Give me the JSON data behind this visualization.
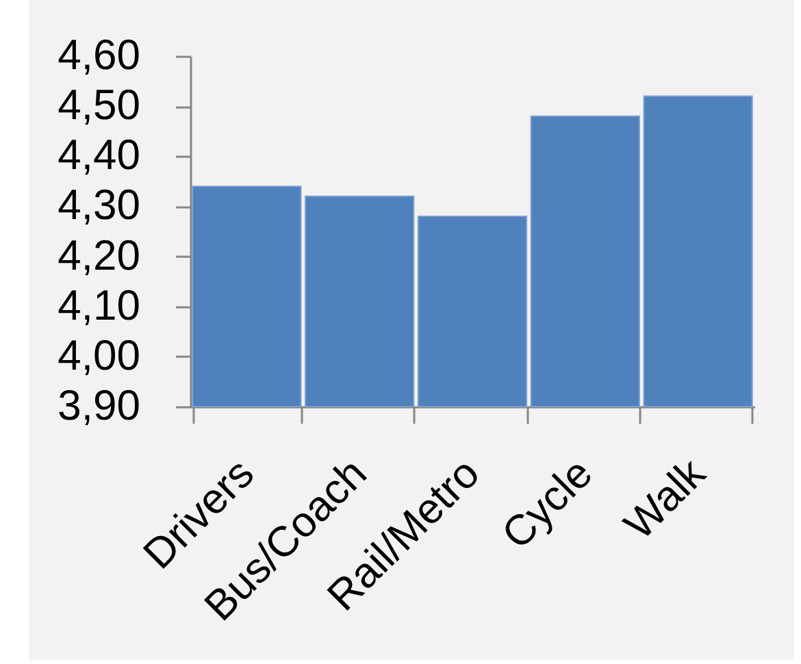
{
  "chart_data": {
    "type": "bar",
    "categories": [
      "Drivers",
      "Bus/Coach",
      "Rail/Metro",
      "Cycle",
      "Walk"
    ],
    "values": [
      4.34,
      4.32,
      4.28,
      4.48,
      4.52
    ],
    "color": "#4f81bd",
    "ylim": [
      3.9,
      4.6
    ],
    "yticks": [
      {
        "value": 3.9,
        "label": "3,90"
      },
      {
        "value": 4.0,
        "label": "4,00"
      },
      {
        "value": 4.1,
        "label": "4,10"
      },
      {
        "value": 4.2,
        "label": "4,20"
      },
      {
        "value": 4.3,
        "label": "4,30"
      },
      {
        "value": 4.4,
        "label": "4,40"
      },
      {
        "value": 4.5,
        "label": "4,50"
      },
      {
        "value": 4.6,
        "label": "4,60"
      }
    ]
  }
}
